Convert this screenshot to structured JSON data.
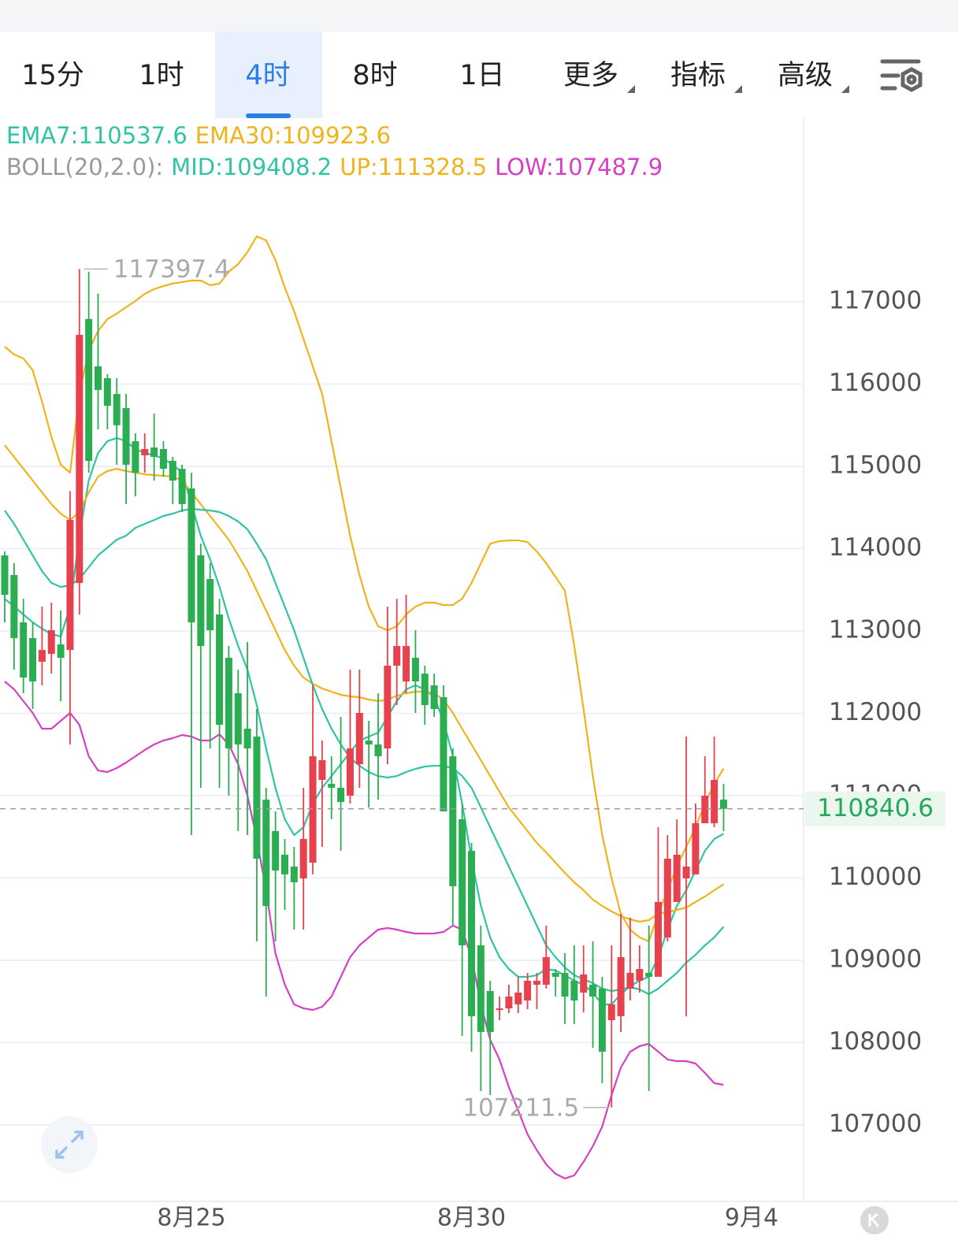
{
  "tabs": [
    "15分",
    "1时",
    "4时",
    "8时",
    "1日",
    "更多",
    "指标",
    "高级"
  ],
  "selected_tab": 2,
  "chart_data": {
    "type": "candlestick",
    "boll_label": "BOLL(20,2.0):",
    "categories": [
      null,
      null,
      null,
      null,
      null,
      null,
      null,
      null,
      null,
      null,
      null,
      null,
      null,
      null,
      null,
      null,
      null,
      null,
      null,
      null,
      "8月25",
      null,
      null,
      null,
      null,
      null,
      null,
      null,
      null,
      null,
      null,
      null,
      null,
      null,
      null,
      null,
      null,
      null,
      null,
      null,
      null,
      null,
      null,
      null,
      null,
      null,
      null,
      null,
      null,
      null,
      "8月30",
      null,
      null,
      null,
      null,
      null,
      null,
      null,
      null,
      null,
      null,
      null,
      null,
      null,
      null,
      null,
      null,
      null,
      null,
      null,
      null,
      null,
      null,
      null,
      null,
      null,
      null,
      null,
      null,
      null,
      "9月4"
    ],
    "open": [
      113919,
      113680,
      113105,
      112914,
      112627,
      112723,
      112837,
      112770,
      113583,
      116790,
      116215,
      116072,
      115880,
      115708,
      115306,
      115134,
      115230,
      115211,
      115067,
      114971,
      114732,
      113919,
      113632,
      113201,
      112675,
      112244,
      111814,
      111718,
      110952,
      110570,
      110283,
      110139,
      109995,
      110187,
      111192,
      111144,
      111096,
      111000,
      111383,
      111670,
      111622,
      111574,
      112579,
      112388,
      112675,
      112483,
      112340,
      112196,
      111479,
      110713,
      110330,
      109182,
      108627,
      108397,
      108416,
      108465,
      108512,
      108704,
      108704,
      108847,
      108847,
      108752,
      108608,
      108704,
      108656,
      108273,
      108321,
      108656,
      108752,
      108847,
      108800,
      109278,
      109709,
      109995,
      110044,
      110665,
      110665,
      110952,
      null,
      null,
      null
    ],
    "high": [
      113967,
      113823,
      113392,
      113105,
      113297,
      113345,
      113249,
      114700,
      117397.4,
      117364,
      117100,
      116120,
      116072,
      115880,
      115402,
      115402,
      115641,
      115306,
      115115,
      115020,
      114923,
      114062,
      113823,
      113392,
      112818,
      112531,
      112866,
      112053,
      111096,
      110809,
      110474,
      110378,
      111096,
      112340,
      111670,
      111479,
      111957,
      112531,
      112531,
      111909,
      112244,
      113297,
      113392,
      113440,
      113010,
      112579,
      112483,
      112340,
      111574,
      110905,
      110426,
      109421,
      108752,
      108560,
      108704,
      108800,
      108847,
      108847,
      109421,
      108895,
      109087,
      109182,
      109182,
      109230,
      108799,
      109182,
      109565,
      109517,
      109182,
      109421,
      110617,
      110522,
      110713,
      111718,
      110905,
      111479,
      111718,
      111144,
      null,
      null,
      null
    ],
    "low": [
      113105,
      112531,
      112244,
      112053,
      112340,
      112483,
      112148,
      111622,
      113200,
      114923,
      115450,
      115450,
      115020,
      114541,
      114636,
      114923,
      114828,
      114876,
      114541,
      114445,
      110522,
      111096,
      111574,
      111096,
      111000,
      110570,
      110522,
      109230,
      108560,
      109230,
      109613,
      109374,
      109374,
      110044,
      110378,
      110713,
      110331,
      110905,
      111096,
      110857,
      110952,
      111383,
      112101,
      112244,
      112005,
      111861,
      111957,
      110809,
      109421,
      108082,
      107890,
      107412,
      107364,
      108273,
      108359,
      108359,
      108407,
      108407,
      108656,
      108560,
      108225,
      108225,
      108368,
      107938,
      107508,
      107211.5,
      108130,
      108512,
      108608,
      107412,
      108800,
      109230,
      109709,
      108320,
      110044,
      110665,
      110617,
      110570,
      null,
      null,
      null
    ],
    "close": [
      113440,
      112914,
      112435,
      112388,
      112770,
      113010,
      112675,
      114350,
      116598,
      115067,
      115928,
      115737,
      115500,
      115020,
      114923,
      115211,
      115115,
      114971,
      114828,
      114541,
      113105,
      112818,
      113010,
      111861,
      111574,
      111622,
      111574,
      110235,
      109660,
      110091,
      110044,
      109948,
      110474,
      111479,
      111431,
      111096,
      110923,
      111574,
      112005,
      111622,
      111479,
      112579,
      112818,
      112818,
      112388,
      112101,
      112053,
      110809,
      109900,
      109182,
      108321,
      108130,
      108130,
      108416,
      108560,
      108608,
      108752,
      108752,
      109039,
      108800,
      108560,
      108512,
      108828,
      108560,
      107890,
      108465,
      109039,
      108847,
      108895,
      108800,
      109709,
      110235,
      110283,
      110139,
      110665,
      111000,
      111192,
      110840.6,
      null,
      null,
      null
    ],
    "up_color": "#e8414e",
    "down_color": "#2bae52",
    "series": [
      {
        "name": "EMA7:",
        "color": "#2fc4a6",
        "values": [
          113392,
          113297,
          113201,
          113105,
          113029,
          112962,
          112933,
          113297,
          114158,
          114828,
          115163,
          115306,
          115345,
          115306,
          115211,
          115163,
          115134,
          115096,
          115019,
          114924,
          114541,
          114158,
          113871,
          113536,
          113153,
          112818,
          112531,
          112101,
          111574,
          111096,
          110713,
          110522,
          110617,
          110905,
          111096,
          111239,
          111383,
          111527,
          111670,
          111718,
          111766,
          111957,
          112149,
          112292,
          112340,
          112292,
          112196,
          111909,
          111479,
          110905,
          110235,
          109661,
          109278,
          109039,
          108895,
          108799,
          108799,
          108819,
          108895,
          108876,
          108819,
          108752,
          108704,
          108608,
          108464,
          108464,
          108589,
          108685,
          108752,
          108799,
          109039,
          109373,
          109661,
          109852,
          110091,
          110330,
          110474,
          110537.6,
          null,
          null,
          null
        ]
      },
      {
        "name": "EMA30:",
        "color": "#f0b31c",
        "values": [
          115258,
          115115,
          114971,
          114828,
          114684,
          114541,
          114426,
          114349,
          114445,
          114684,
          114876,
          114943,
          114971,
          114943,
          114924,
          114904,
          114895,
          114885,
          114876,
          114828,
          114684,
          114541,
          114397,
          114254,
          114110,
          113919,
          113727,
          113488,
          113249,
          113010,
          112771,
          112579,
          112436,
          112359,
          112302,
          112263,
          112225,
          112206,
          112196,
          112168,
          112149,
          112168,
          112215,
          112244,
          112263,
          112263,
          112244,
          112168,
          112005,
          111814,
          111622,
          111431,
          111239,
          111048,
          110857,
          110713,
          110570,
          110426,
          110311,
          110187,
          110062,
          109948,
          109852,
          109737,
          109661,
          109594,
          109536,
          109498,
          109469,
          109488,
          109565,
          109584,
          109613,
          109641,
          109708,
          109775,
          109852,
          109923.6,
          null,
          null,
          null
        ]
      },
      {
        "name": "MID:",
        "color": "#2fc4a6",
        "values": [
          114464,
          114302,
          114110,
          113919,
          113727,
          113584,
          113536,
          113555,
          113632,
          113775,
          113919,
          114014,
          114110,
          114158,
          114254,
          114302,
          114349,
          114397,
          114426,
          114464,
          114483,
          114474,
          114464,
          114445,
          114397,
          114330,
          114235,
          114062,
          113871,
          113584,
          113297,
          113010,
          112675,
          112340,
          112053,
          111814,
          111622,
          111460,
          111364,
          111287,
          111239,
          111220,
          111239,
          111287,
          111326,
          111354,
          111364,
          111364,
          111335,
          111239,
          111096,
          110857,
          110617,
          110378,
          110139,
          109900,
          109661,
          109421,
          109182,
          109039,
          108914,
          108819,
          108771,
          108723,
          108656,
          108627,
          108646,
          108675,
          108646,
          108589,
          108656,
          108752,
          108847,
          108972,
          109067,
          109182,
          109278,
          109408.2,
          null,
          null,
          null
        ]
      },
      {
        "name": "UP:",
        "color": "#f0b31c",
        "values": [
          116455,
          116359,
          116311,
          116168,
          115785,
          115354,
          115019,
          114924,
          115880,
          116407,
          116646,
          116789,
          116856,
          116933,
          117010,
          117096,
          117153,
          117191,
          117220,
          117239,
          117258,
          117258,
          117201,
          117220,
          117364,
          117459,
          117603,
          117794,
          117746,
          117507,
          117172,
          116885,
          116550,
          116215,
          115880,
          115306,
          114732,
          114158,
          113680,
          113297,
          113058,
          113010,
          113058,
          113201,
          113297,
          113345,
          113345,
          113316,
          113316,
          113392,
          113584,
          113823,
          114062,
          114091,
          114101,
          114101,
          114081,
          113967,
          113823,
          113660,
          113488,
          112818,
          112053,
          111239,
          110522,
          109995,
          109565,
          109373,
          109278,
          109230,
          109565,
          109852,
          110139,
          110378,
          110617,
          110905,
          111144,
          111328.5,
          null,
          null,
          null
        ]
      },
      {
        "name": "LOW:",
        "color": "#d640c4",
        "values": [
          112388,
          112292,
          112149,
          112005,
          111814,
          111814,
          111909,
          112005,
          111861,
          111479,
          111306,
          111287,
          111335,
          111402,
          111479,
          111555,
          111622,
          111670,
          111699,
          111737,
          111718,
          111670,
          111670,
          111747,
          111622,
          111383,
          111000,
          110474,
          109852,
          109086,
          108704,
          108464,
          108417,
          108397,
          108436,
          108560,
          108799,
          109039,
          109182,
          109278,
          109373,
          109393,
          109373,
          109345,
          109326,
          109326,
          109326,
          109345,
          109421,
          109373,
          109039,
          108464,
          108034,
          107795,
          107460,
          107173,
          106886,
          106694,
          106522,
          106407,
          106350,
          106388,
          106551,
          106742,
          106981,
          107364,
          107699,
          107890,
          107957,
          107986,
          107890,
          107795,
          107775,
          107775,
          107747,
          107632,
          107508,
          107487.9,
          null,
          null,
          null
        ]
      }
    ],
    "last_price": 110840.6,
    "ylim": [
      106072,
      119230
    ],
    "yticks": [
      107000,
      108000,
      109000,
      110000,
      111000,
      112000,
      113000,
      114000,
      115000,
      116000,
      117000
    ],
    "grid": true
  }
}
